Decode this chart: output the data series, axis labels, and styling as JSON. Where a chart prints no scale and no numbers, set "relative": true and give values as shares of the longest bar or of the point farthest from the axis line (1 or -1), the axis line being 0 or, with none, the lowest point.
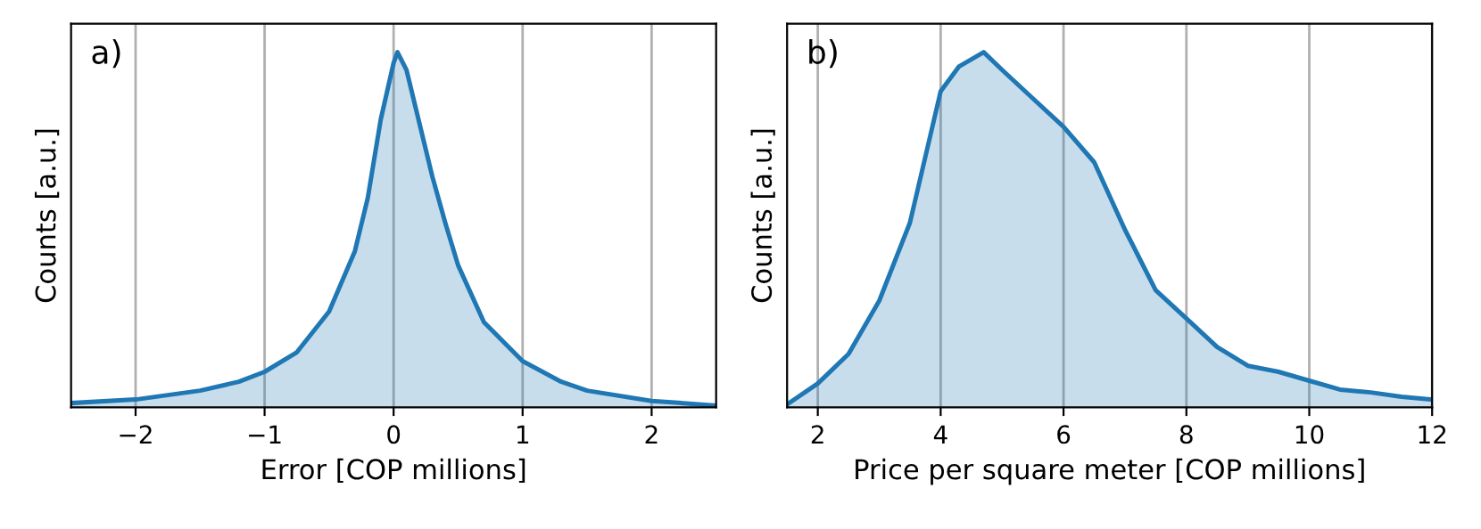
{
  "chart_data": [
    {
      "type": "area",
      "relative": true,
      "xlabel": "Error [COP millions]",
      "ylabel": "Counts [a.u.]",
      "annotations": [
        "a)"
      ],
      "xlim": [
        -2.5,
        2.5
      ],
      "xticks": [
        {
          "value": -2,
          "label": "−2"
        },
        {
          "value": -1,
          "label": "−1"
        },
        0,
        1,
        2
      ],
      "grid": "x",
      "tick_labels": "x",
      "x": [
        -2.5,
        -2.0,
        -1.5,
        -1.2,
        -1.0,
        -0.75,
        -0.5,
        -0.3,
        -0.2,
        -0.1,
        0.0,
        0.03,
        0.1,
        0.2,
        0.3,
        0.4,
        0.5,
        0.7,
        1.0,
        1.3,
        1.5,
        2.0,
        2.5
      ],
      "series": [
        {
          "color": "#1f77b4",
          "values": [
            0.012,
            0.022,
            0.047,
            0.072,
            0.1,
            0.155,
            0.27,
            0.44,
            0.59,
            0.81,
            0.97,
            1.0,
            0.95,
            0.8,
            0.65,
            0.52,
            0.4,
            0.24,
            0.13,
            0.072,
            0.047,
            0.018,
            0.005
          ]
        }
      ]
    },
    {
      "type": "area",
      "relative": true,
      "xlabel": "Price per square meter [COP millions]",
      "ylabel": "Counts [a.u.]",
      "annotations": [
        "b)"
      ],
      "xlim": [
        1.5,
        12
      ],
      "xticks": [
        2,
        4,
        6,
        8,
        10,
        12
      ],
      "grid": "x",
      "tick_labels": "x",
      "x": [
        1.5,
        2.0,
        2.5,
        3.0,
        3.5,
        4.0,
        4.3,
        4.7,
        5.0,
        5.5,
        6.0,
        6.5,
        7.0,
        7.5,
        8.0,
        8.5,
        9.0,
        9.5,
        10.0,
        10.5,
        11.0,
        11.5,
        12.0
      ],
      "series": [
        {
          "color": "#1f77b4",
          "values": [
            0.008,
            0.067,
            0.15,
            0.3,
            0.52,
            0.89,
            0.96,
            1.0,
            0.95,
            0.87,
            0.79,
            0.69,
            0.5,
            0.33,
            0.25,
            0.17,
            0.117,
            0.1,
            0.075,
            0.05,
            0.042,
            0.03,
            0.022
          ]
        }
      ]
    }
  ]
}
